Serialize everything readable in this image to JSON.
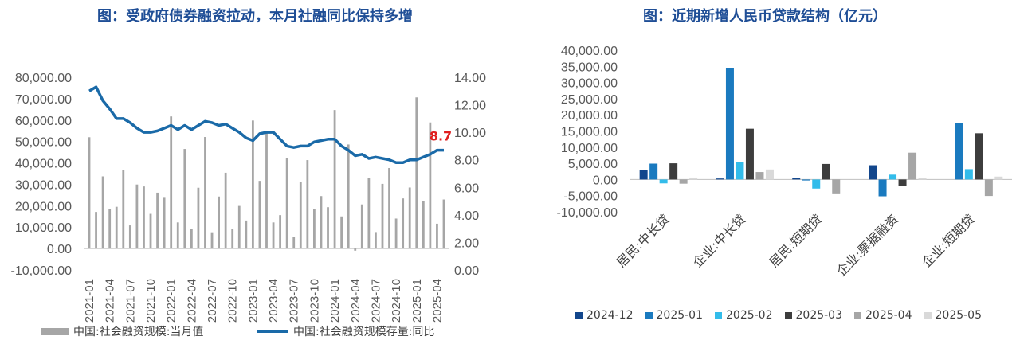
{
  "left": {
    "title": "图：受政府债券融资拉动，本月社融同比保持多增",
    "legend_bar": "中国:社会融资规模:当月值",
    "legend_line": "中国:社会融资规模存量:同比",
    "annotation": "8.7",
    "colors": {
      "bar": "#a6a6a6",
      "line": "#1a6aa8",
      "annotation": "#e02020"
    }
  },
  "right": {
    "title": "图：近期新增人民币贷款结构（亿元）"
  },
  "chart_data": [
    {
      "type": "bar+line",
      "title": "图：受政府债券融资拉动，本月社融同比保持多增",
      "y_left_ticks": [
        "80,000.00",
        "70,000.00",
        "60,000.00",
        "50,000.00",
        "40,000.00",
        "30,000.00",
        "20,000.00",
        "10,000.00",
        "0.00",
        "-10,000.00"
      ],
      "y_right_ticks": [
        "14.00",
        "12.00",
        "10.00",
        "8.00",
        "6.00",
        "4.00",
        "2.00",
        "0.00"
      ],
      "y_left_range": [
        -10000,
        80000
      ],
      "y_right_range": [
        0,
        14
      ],
      "x_ticks": [
        "2021-01",
        "2021-04",
        "2021-07",
        "2021-10",
        "2022-01",
        "2022-04",
        "2022-07",
        "2022-10",
        "2023-01",
        "2023-04",
        "2023-07",
        "2023-10",
        "2024-01",
        "2024-04",
        "2024-07",
        "2024-10",
        "2025-01",
        "2025-04"
      ],
      "months": [
        "2021-01",
        "2021-02",
        "2021-03",
        "2021-04",
        "2021-05",
        "2021-06",
        "2021-07",
        "2021-08",
        "2021-09",
        "2021-10",
        "2021-11",
        "2021-12",
        "2022-01",
        "2022-02",
        "2022-03",
        "2022-04",
        "2022-05",
        "2022-06",
        "2022-07",
        "2022-08",
        "2022-09",
        "2022-10",
        "2022-11",
        "2022-12",
        "2023-01",
        "2023-02",
        "2023-03",
        "2023-04",
        "2023-05",
        "2023-06",
        "2023-07",
        "2023-08",
        "2023-09",
        "2023-10",
        "2023-11",
        "2023-12",
        "2024-01",
        "2024-02",
        "2024-03",
        "2024-04",
        "2024-05",
        "2024-06",
        "2024-07",
        "2024-08",
        "2024-09",
        "2024-10",
        "2024-11",
        "2024-12",
        "2025-01",
        "2025-02",
        "2025-03",
        "2025-04",
        "2025-05"
      ],
      "series": [
        {
          "name": "中国:社会融资规模:当月值",
          "kind": "bar",
          "values": [
            52000,
            17100,
            33700,
            18500,
            19500,
            36800,
            10800,
            29900,
            29000,
            16200,
            26100,
            23700,
            61700,
            12200,
            46500,
            9300,
            28400,
            52100,
            7600,
            24300,
            35400,
            9100,
            19900,
            13100,
            59800,
            31600,
            53800,
            12200,
            15600,
            42200,
            5400,
            31200,
            41300,
            18500,
            24500,
            19300,
            64700,
            15000,
            48600,
            -1000,
            20600,
            32900,
            7700,
            30200,
            37600,
            14000,
            23400,
            28500,
            70600,
            22300,
            58900,
            11600,
            22900
          ]
        },
        {
          "name": "中国:社会融资规模存量:同比",
          "kind": "line",
          "values": [
            13.0,
            13.3,
            12.3,
            11.7,
            11.0,
            11.0,
            10.7,
            10.3,
            10.0,
            10.0,
            10.1,
            10.3,
            10.5,
            10.2,
            10.5,
            10.2,
            10.5,
            10.8,
            10.7,
            10.5,
            10.6,
            10.3,
            10.0,
            9.6,
            9.4,
            9.9,
            10.0,
            10.0,
            9.5,
            9.0,
            8.9,
            9.0,
            9.0,
            9.3,
            9.4,
            9.5,
            9.5,
            9.0,
            8.7,
            8.3,
            8.4,
            8.1,
            8.2,
            8.1,
            8.0,
            7.8,
            7.8,
            8.0,
            8.0,
            8.2,
            8.4,
            8.7,
            8.7
          ]
        }
      ],
      "annotation": {
        "month": "2025-05",
        "text": "8.7"
      }
    },
    {
      "type": "bar",
      "title": "图：近期新增人民币贷款结构（亿元）",
      "categories": [
        "居民:中长贷",
        "企业:中长贷",
        "居民:短期贷",
        "企业:票据融资",
        "企业:短期贷"
      ],
      "y_ticks": [
        "40,000.00",
        "35,000.00",
        "30,000.00",
        "25,000.00",
        "20,000.00",
        "15,000.00",
        "10,000.00",
        "5,000.00",
        "0.00",
        "-5,000.00",
        "-10,000.00"
      ],
      "ylim": [
        -10000,
        40000
      ],
      "series": [
        {
          "name": "2024-12",
          "color": "#12468c",
          "values": [
            3000,
            300,
            500,
            4400,
            0
          ]
        },
        {
          "name": "2025-01",
          "color": "#1a7abf",
          "values": [
            4900,
            34500,
            -300,
            -5200,
            17400
          ]
        },
        {
          "name": "2025-02",
          "color": "#33bcea",
          "values": [
            -1200,
            5300,
            -2800,
            1500,
            3200
          ]
        },
        {
          "name": "2025-03",
          "color": "#3d3d3d",
          "values": [
            5000,
            15700,
            4800,
            -2000,
            14300
          ]
        },
        {
          "name": "2025-04",
          "color": "#a6a6a6",
          "values": [
            -1300,
            2300,
            -4300,
            8300,
            -5100
          ]
        },
        {
          "name": "2025-05",
          "color": "#d9d9d9",
          "values": [
            600,
            3100,
            0,
            500,
            900
          ]
        }
      ]
    }
  ]
}
